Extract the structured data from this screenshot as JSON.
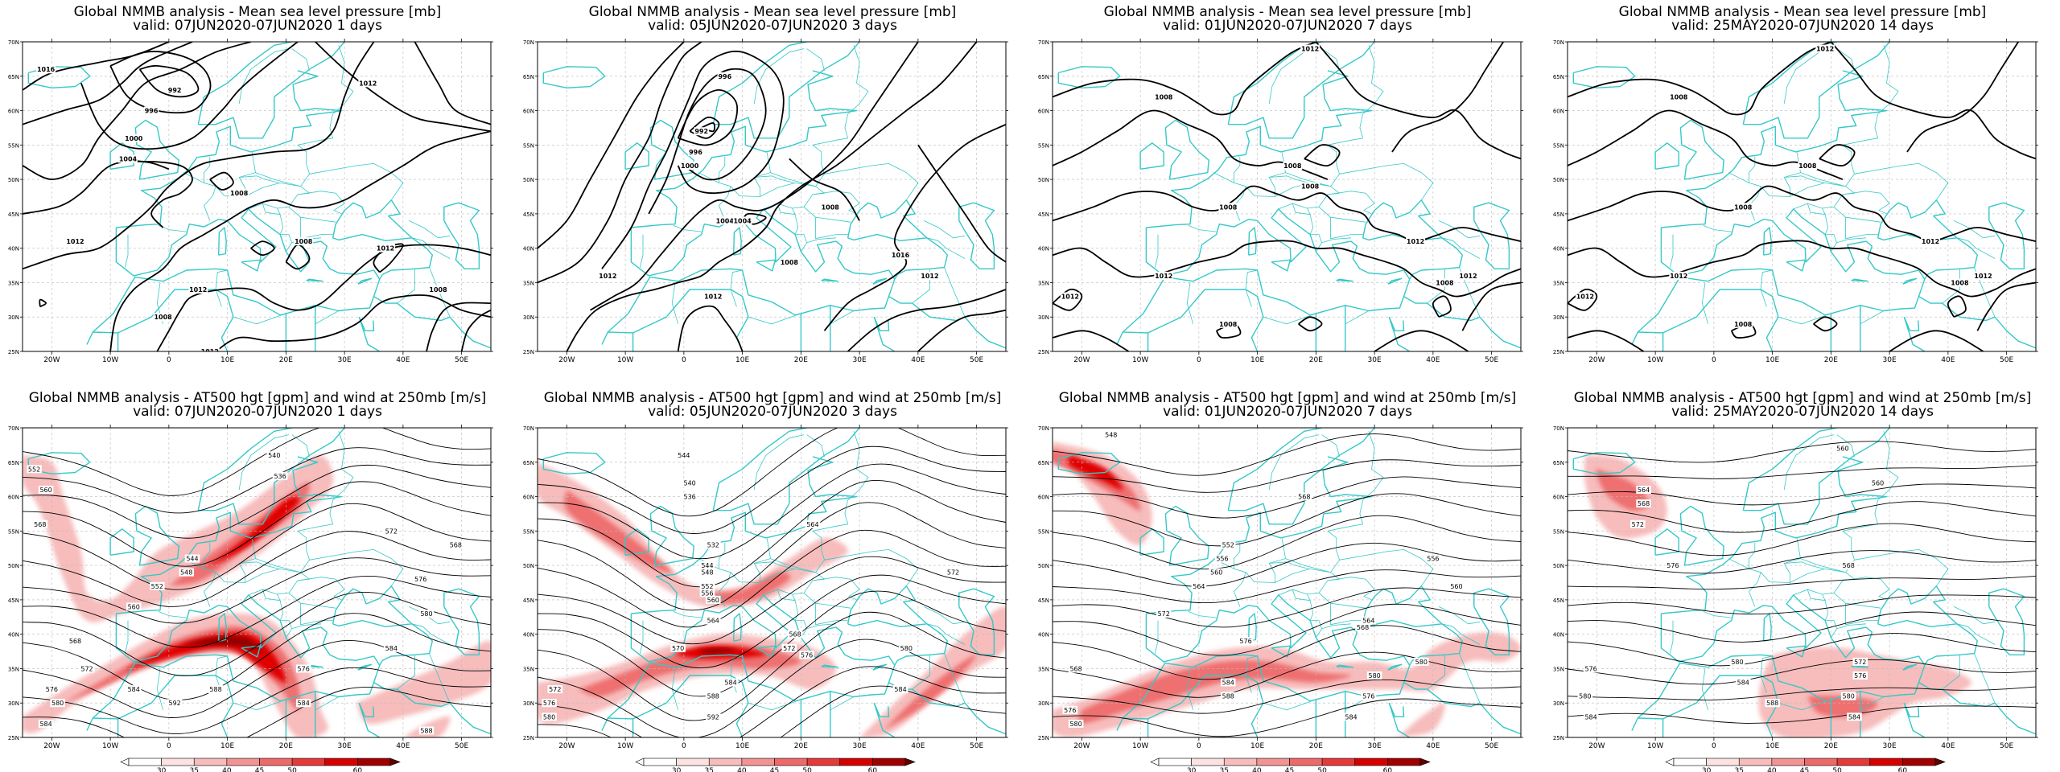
{
  "colors": {
    "coast": "#36c8c8",
    "contour": "#000000",
    "wind_light": "#f7bcbc",
    "wind_mid": "#ee6f6f",
    "wind_strong": "#e00000",
    "wind_max": "#900000",
    "grid": "#bbbbbb"
  },
  "axes": {
    "lon_labels": [
      "20W",
      "10W",
      "0",
      "10E",
      "20E",
      "30E",
      "40E",
      "50E"
    ],
    "lat_labels": [
      "70N",
      "65N",
      "60N",
      "55N",
      "50N",
      "45N",
      "40N",
      "35N",
      "30N",
      "25N"
    ],
    "lon_range": [
      -25,
      55
    ],
    "lat_range": [
      25,
      70
    ]
  },
  "colorbar": {
    "labels": [
      "30",
      "35",
      "40",
      "45",
      "50",
      "60"
    ]
  },
  "panels": [
    {
      "id": "mslp-1d",
      "title": "Global NMMB analysis - Mean sea level pressure [mb]",
      "subtitle": "valid: 07JUN2020-07JUN2020   1 days",
      "kind": "mslp",
      "contour_labels": [
        {
          "text": "1016",
          "lon": -21,
          "lat": 66
        },
        {
          "text": "992",
          "lon": 1,
          "lat": 63
        },
        {
          "text": "996",
          "lon": -3,
          "lat": 60
        },
        {
          "text": "1000",
          "lon": -6,
          "lat": 56
        },
        {
          "text": "1004",
          "lon": -7,
          "lat": 53
        },
        {
          "text": "1012",
          "lon": 34,
          "lat": 64
        },
        {
          "text": "1008",
          "lon": 12,
          "lat": 48
        },
        {
          "text": "1008",
          "lon": 23,
          "lat": 41
        },
        {
          "text": "1012",
          "lon": -16,
          "lat": 41
        },
        {
          "text": "1012",
          "lon": 37,
          "lat": 40
        },
        {
          "text": "1012",
          "lon": 5,
          "lat": 34
        },
        {
          "text": "1008",
          "lon": -1,
          "lat": 30
        },
        {
          "text": "1008",
          "lon": 46,
          "lat": 34
        },
        {
          "text": "1012",
          "lon": 7,
          "lat": 25
        }
      ]
    },
    {
      "id": "mslp-3d",
      "title": "Global NMMB analysis - Mean sea level pressure [mb]",
      "subtitle": "valid: 05JUN2020-07JUN2020   3 days",
      "kind": "mslp",
      "contour_labels": [
        {
          "text": "996",
          "lon": 7,
          "lat": 65
        },
        {
          "text": "992",
          "lon": 3,
          "lat": 57
        },
        {
          "text": "996",
          "lon": 2,
          "lat": 54
        },
        {
          "text": "1000",
          "lon": 1,
          "lat": 52
        },
        {
          "text": "1004",
          "lon": 7,
          "lat": 44
        },
        {
          "text": "1004",
          "lon": 10,
          "lat": 44
        },
        {
          "text": "1008",
          "lon": 25,
          "lat": 46
        },
        {
          "text": "1008",
          "lon": 18,
          "lat": 38
        },
        {
          "text": "1012",
          "lon": -13,
          "lat": 36
        },
        {
          "text": "1016",
          "lon": 37,
          "lat": 39
        },
        {
          "text": "1012",
          "lon": 5,
          "lat": 33
        },
        {
          "text": "1012",
          "lon": 42,
          "lat": 36
        }
      ]
    },
    {
      "id": "mslp-7d",
      "title": "Global NMMB analysis - Mean sea level pressure [mb]",
      "subtitle": "valid: 01JUN2020-07JUN2020   7 days",
      "kind": "mslp",
      "contour_labels": [
        {
          "text": "1008",
          "lon": -6,
          "lat": 62
        },
        {
          "text": "1012",
          "lon": 19,
          "lat": 69
        },
        {
          "text": "1008",
          "lon": 16,
          "lat": 52
        },
        {
          "text": "1008",
          "lon": 5,
          "lat": 46
        },
        {
          "text": "1008",
          "lon": 19,
          "lat": 49
        },
        {
          "text": "1012",
          "lon": -6,
          "lat": 36
        },
        {
          "text": "1012",
          "lon": 37,
          "lat": 41
        },
        {
          "text": "1012",
          "lon": -22,
          "lat": 33
        },
        {
          "text": "1008",
          "lon": 42,
          "lat": 35
        },
        {
          "text": "1012",
          "lon": 46,
          "lat": 36
        },
        {
          "text": "1008",
          "lon": 5,
          "lat": 29
        }
      ]
    },
    {
      "id": "mslp-14d",
      "title": "Global NMMB analysis - Mean sea level pressure [mb]",
      "subtitle": "valid: 25MAY2020-07JUN2020   14 days",
      "kind": "mslp",
      "contour_labels": [
        {
          "text": "1008",
          "lon": -6,
          "lat": 62
        },
        {
          "text": "1012",
          "lon": 19,
          "lat": 69
        },
        {
          "text": "1008",
          "lon": 16,
          "lat": 52
        },
        {
          "text": "1008",
          "lon": 5,
          "lat": 46
        },
        {
          "text": "1012",
          "lon": -6,
          "lat": 36
        },
        {
          "text": "1012",
          "lon": 37,
          "lat": 41
        },
        {
          "text": "1012",
          "lon": -22,
          "lat": 33
        },
        {
          "text": "1008",
          "lon": 42,
          "lat": 35
        },
        {
          "text": "1012",
          "lon": 46,
          "lat": 36
        },
        {
          "text": "1008",
          "lon": 5,
          "lat": 29
        }
      ]
    },
    {
      "id": "z500-1d",
      "title": "Global NMMB analysis - AT500 hgt [gpm] and wind at 250mb [m/s]",
      "subtitle": "valid: 07JUN2020-07JUN2020   1 days",
      "kind": "z500",
      "contour_labels": [
        {
          "text": "552",
          "lon": -23,
          "lat": 64
        },
        {
          "text": "560",
          "lon": -21,
          "lat": 61
        },
        {
          "text": "568",
          "lon": -22,
          "lat": 56
        },
        {
          "text": "540",
          "lon": 18,
          "lat": 66
        },
        {
          "text": "536",
          "lon": 19,
          "lat": 63
        },
        {
          "text": "544",
          "lon": 4,
          "lat": 51
        },
        {
          "text": "548",
          "lon": 3,
          "lat": 49
        },
        {
          "text": "552",
          "lon": -2,
          "lat": 47
        },
        {
          "text": "560",
          "lon": -6,
          "lat": 44
        },
        {
          "text": "572",
          "lon": 38,
          "lat": 55
        },
        {
          "text": "568",
          "lon": 49,
          "lat": 53
        },
        {
          "text": "576",
          "lon": 43,
          "lat": 48
        },
        {
          "text": "580",
          "lon": 44,
          "lat": 43
        },
        {
          "text": "568",
          "lon": -16,
          "lat": 39
        },
        {
          "text": "572",
          "lon": -14,
          "lat": 35
        },
        {
          "text": "576",
          "lon": -20,
          "lat": 32
        },
        {
          "text": "580",
          "lon": -19,
          "lat": 30
        },
        {
          "text": "584",
          "lon": -21,
          "lat": 27
        },
        {
          "text": "584",
          "lon": -6,
          "lat": 32
        },
        {
          "text": "588",
          "lon": 8,
          "lat": 32
        },
        {
          "text": "592",
          "lon": 1,
          "lat": 30
        },
        {
          "text": "576",
          "lon": 23,
          "lat": 35
        },
        {
          "text": "584",
          "lon": 23,
          "lat": 30
        },
        {
          "text": "584",
          "lon": 38,
          "lat": 38
        },
        {
          "text": "588",
          "lon": 44,
          "lat": 26
        }
      ]
    },
    {
      "id": "z500-3d",
      "title": "Global NMMB analysis - AT500 hgt [gpm] and wind at 250mb [m/s]",
      "subtitle": "valid: 05JUN2020-07JUN2020   3 days",
      "kind": "z500",
      "contour_labels": [
        {
          "text": "544",
          "lon": 0,
          "lat": 66
        },
        {
          "text": "540",
          "lon": 1,
          "lat": 62
        },
        {
          "text": "536",
          "lon": 1,
          "lat": 60
        },
        {
          "text": "532",
          "lon": 5,
          "lat": 53
        },
        {
          "text": "544",
          "lon": 4,
          "lat": 50
        },
        {
          "text": "548",
          "lon": 4,
          "lat": 49
        },
        {
          "text": "552",
          "lon": 4,
          "lat": 47
        },
        {
          "text": "556",
          "lon": 4,
          "lat": 46
        },
        {
          "text": "560",
          "lon": 5,
          "lat": 45
        },
        {
          "text": "564",
          "lon": 22,
          "lat": 56
        },
        {
          "text": "572",
          "lon": 46,
          "lat": 49
        },
        {
          "text": "564",
          "lon": 5,
          "lat": 42
        },
        {
          "text": "568",
          "lon": 19,
          "lat": 40
        },
        {
          "text": "572",
          "lon": 18,
          "lat": 38
        },
        {
          "text": "576",
          "lon": 21,
          "lat": 37
        },
        {
          "text": "570",
          "lon": -1,
          "lat": 38
        },
        {
          "text": "580",
          "lon": 38,
          "lat": 38
        },
        {
          "text": "584",
          "lon": 8,
          "lat": 33
        },
        {
          "text": "588",
          "lon": 5,
          "lat": 31
        },
        {
          "text": "592",
          "lon": 5,
          "lat": 28
        },
        {
          "text": "584",
          "lon": 37,
          "lat": 32
        },
        {
          "text": "572",
          "lon": -22,
          "lat": 32
        },
        {
          "text": "576",
          "lon": -23,
          "lat": 30
        },
        {
          "text": "580",
          "lon": -23,
          "lat": 28
        }
      ]
    },
    {
      "id": "z500-7d",
      "title": "Global NMMB analysis - AT500 hgt [gpm] and wind at 250mb [m/s]",
      "subtitle": "valid: 01JUN2020-07JUN2020   7 days",
      "kind": "z500",
      "contour_labels": [
        {
          "text": "548",
          "lon": -15,
          "lat": 69
        },
        {
          "text": "552",
          "lon": 5,
          "lat": 53
        },
        {
          "text": "556",
          "lon": 4,
          "lat": 51
        },
        {
          "text": "560",
          "lon": 3,
          "lat": 49
        },
        {
          "text": "564",
          "lon": 0,
          "lat": 47
        },
        {
          "text": "568",
          "lon": 18,
          "lat": 60
        },
        {
          "text": "556",
          "lon": 40,
          "lat": 51
        },
        {
          "text": "560",
          "lon": 44,
          "lat": 47
        },
        {
          "text": "572",
          "lon": -6,
          "lat": 43
        },
        {
          "text": "564",
          "lon": 29,
          "lat": 42
        },
        {
          "text": "568",
          "lon": 28,
          "lat": 41
        },
        {
          "text": "576",
          "lon": 8,
          "lat": 39
        },
        {
          "text": "584",
          "lon": 5,
          "lat": 33
        },
        {
          "text": "588",
          "lon": 5,
          "lat": 31
        },
        {
          "text": "580",
          "lon": 30,
          "lat": 34
        },
        {
          "text": "576",
          "lon": 29,
          "lat": 31
        },
        {
          "text": "580",
          "lon": 38,
          "lat": 36
        },
        {
          "text": "584",
          "lon": 26,
          "lat": 28
        },
        {
          "text": "568",
          "lon": -21,
          "lat": 35
        },
        {
          "text": "576",
          "lon": -22,
          "lat": 29
        },
        {
          "text": "580",
          "lon": -21,
          "lat": 27
        }
      ]
    },
    {
      "id": "z500-14d",
      "title": "Global NMMB analysis - AT500 hgt [gpm] and wind at 250mb [m/s]",
      "subtitle": "valid: 25MAY2020-07JUN2020   14 days",
      "kind": "z500",
      "contour_labels": [
        {
          "text": "560",
          "lon": 22,
          "lat": 67
        },
        {
          "text": "564",
          "lon": -12,
          "lat": 61
        },
        {
          "text": "568",
          "lon": -12,
          "lat": 59
        },
        {
          "text": "572",
          "lon": -13,
          "lat": 56
        },
        {
          "text": "560",
          "lon": 28,
          "lat": 62
        },
        {
          "text": "576",
          "lon": -7,
          "lat": 50
        },
        {
          "text": "568",
          "lon": 23,
          "lat": 50
        },
        {
          "text": "572",
          "lon": 25,
          "lat": 36
        },
        {
          "text": "576",
          "lon": 25,
          "lat": 34
        },
        {
          "text": "580",
          "lon": 4,
          "lat": 36
        },
        {
          "text": "584",
          "lon": 5,
          "lat": 33
        },
        {
          "text": "588",
          "lon": 10,
          "lat": 30
        },
        {
          "text": "580",
          "lon": 23,
          "lat": 31
        },
        {
          "text": "584",
          "lon": 24,
          "lat": 28
        },
        {
          "text": "576",
          "lon": -21,
          "lat": 35
        },
        {
          "text": "580",
          "lon": -22,
          "lat": 31
        },
        {
          "text": "584",
          "lon": -21,
          "lat": 28
        }
      ]
    }
  ]
}
